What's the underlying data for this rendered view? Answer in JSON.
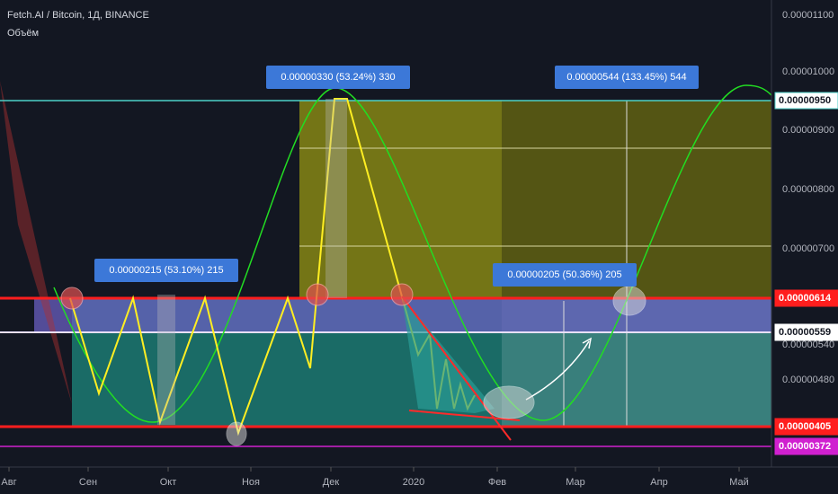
{
  "header": {
    "symbol": "Fetch.AI / Bitcoin, 1Д, BINANCE",
    "volume_label": "Объём"
  },
  "price_axis": {
    "ticks": [
      "0.00001100",
      "0.00001000",
      "0.00000900",
      "0.00000800",
      "0.00000700",
      "0.00000540",
      "0.00000480"
    ],
    "highlights": [
      "0.00000950",
      "0.00000614",
      "0.00000559",
      "0.00000405",
      "0.00000372"
    ]
  },
  "time_axis": {
    "ticks": [
      "Авг",
      "Сен",
      "Окт",
      "Ноя",
      "Дек",
      "2020",
      "Фев",
      "Мар",
      "Апр",
      "Май"
    ]
  },
  "annotations": [
    "0.00000330 (53.24%) 330",
    "0.00000544 (133.45%) 544",
    "0.00000215 (53.10%) 215",
    "0.00000205 (50.36%) 205"
  ]
}
